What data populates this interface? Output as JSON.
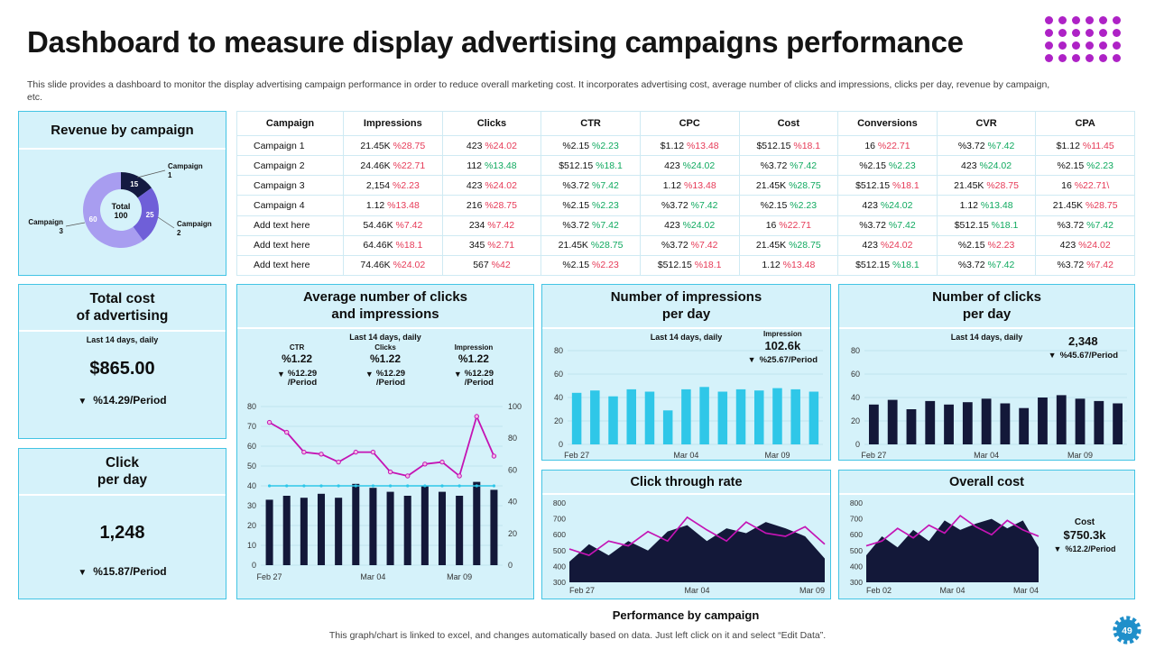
{
  "page": {
    "title": "Dashboard to measure display advertising campaigns performance",
    "subtitle": "This slide provides a dashboard to monitor the display advertising campaign performance in order to reduce overall marketing cost. It incorporates advertising cost, average number of clicks and impressions, clicks per day, revenue by campaign, etc.",
    "footer_title": "Performance by campaign",
    "footer_note": "This graph/chart is linked to excel,  and changes automatically based on data. Just left click on it and select “Edit Data”.",
    "page_number": "49"
  },
  "icons": {
    "down_triangle": "▼"
  },
  "colors": {
    "red": "#e63a57",
    "green": "#0fa95f",
    "navy": "#131839",
    "cyan": "#2fc7e8",
    "magenta": "#c414b4",
    "panel_bg": "#d5f2fa",
    "panel_border": "#43c4e4",
    "grid": "#b9dfea",
    "dots": "#ae22c6",
    "badge": "#1f8fca"
  },
  "revenue": {
    "title": "Revenue by campaign",
    "chart_data": {
      "type": "pie",
      "center_label": [
        "Total",
        "100"
      ],
      "slices": [
        {
          "label": "Campaign 1",
          "value": 15,
          "color": "#141a41"
        },
        {
          "label": "Campaign 2",
          "value": 25,
          "color": "#6f5fd8"
        },
        {
          "label": "Campaign 3",
          "value": 60,
          "color": "#a89df0"
        }
      ]
    }
  },
  "table": {
    "columns": [
      "Campaign",
      "Impressions",
      "Clicks",
      "CTR",
      "CPC",
      "Cost",
      "Conversions",
      "CVR",
      "CPA"
    ],
    "rows": [
      {
        "label": "Campaign  1",
        "cells": [
          {
            "v": "21.45K",
            "p": "%28.75",
            "c": "red"
          },
          {
            "v": "423",
            "p": "%24.02",
            "c": "red"
          },
          {
            "v": "%2.15",
            "p": "%2.23",
            "c": "green"
          },
          {
            "v": "$1.12",
            "p": "%13.48",
            "c": "red"
          },
          {
            "v": "$512.15",
            "p": "%18.1",
            "c": "red"
          },
          {
            "v": "16",
            "p": "%22.71",
            "c": "red"
          },
          {
            "v": "%3.72",
            "p": "%7.42",
            "c": "green"
          },
          {
            "v": "$1.12",
            "p": "%11.45",
            "c": "red"
          }
        ]
      },
      {
        "label": "Campaign  2",
        "cells": [
          {
            "v": "24.46K",
            "p": "%22.71",
            "c": "red"
          },
          {
            "v": "112",
            "p": "%13.48",
            "c": "green"
          },
          {
            "v": "$512.15",
            "p": "%18.1",
            "c": "green"
          },
          {
            "v": "423",
            "p": "%24.02",
            "c": "green"
          },
          {
            "v": "%3.72",
            "p": "%7.42",
            "c": "green"
          },
          {
            "v": "%2.15",
            "p": "%2.23",
            "c": "green"
          },
          {
            "v": "423",
            "p": "%24.02",
            "c": "green"
          },
          {
            "v": "%2.15",
            "p": "%2.23",
            "c": "green"
          }
        ]
      },
      {
        "label": "Campaign  3",
        "cells": [
          {
            "v": "2,154",
            "p": "%2.23",
            "c": "red"
          },
          {
            "v": "423",
            "p": "%24.02",
            "c": "red"
          },
          {
            "v": "%3.72",
            "p": "%7.42",
            "c": "green"
          },
          {
            "v": "1.12",
            "p": "%13.48",
            "c": "red"
          },
          {
            "v": "21.45K",
            "p": "%28.75",
            "c": "green"
          },
          {
            "v": "$512.15",
            "p": "%18.1",
            "c": "red"
          },
          {
            "v": "21.45K",
            "p": "%28.75",
            "c": "red"
          },
          {
            "v": "16",
            "p": "%22.71\\",
            "c": "red"
          }
        ]
      },
      {
        "label": "Campaign  4",
        "cells": [
          {
            "v": "1.12",
            "p": "%13.48",
            "c": "red"
          },
          {
            "v": "216",
            "p": "%28.75",
            "c": "red"
          },
          {
            "v": "%2.15",
            "p": "%2.23",
            "c": "green"
          },
          {
            "v": "%3.72",
            "p": "%7.42",
            "c": "green"
          },
          {
            "v": "%2.15",
            "p": "%2.23",
            "c": "green"
          },
          {
            "v": "423",
            "p": "%24.02",
            "c": "green"
          },
          {
            "v": "1.12",
            "p": "%13.48",
            "c": "green"
          },
          {
            "v": "21.45K",
            "p": "%28.75",
            "c": "red"
          }
        ]
      },
      {
        "label": "Add text here",
        "cells": [
          {
            "v": "54.46K",
            "p": "%7.42",
            "c": "red"
          },
          {
            "v": "234",
            "p": "%7.42",
            "c": "red"
          },
          {
            "v": "%3.72",
            "p": "%7.42",
            "c": "green"
          },
          {
            "v": "423",
            "p": "%24.02",
            "c": "green"
          },
          {
            "v": "16",
            "p": "%22.71",
            "c": "red"
          },
          {
            "v": "%3.72",
            "p": "%7.42",
            "c": "green"
          },
          {
            "v": "$512.15",
            "p": "%18.1",
            "c": "green"
          },
          {
            "v": "%3.72",
            "p": "%7.42",
            "c": "green"
          }
        ]
      },
      {
        "label": "Add text here",
        "cells": [
          {
            "v": "64.46K",
            "p": "%18.1",
            "c": "red"
          },
          {
            "v": "345",
            "p": "%2.71",
            "c": "red"
          },
          {
            "v": "21.45K",
            "p": "%28.75",
            "c": "green"
          },
          {
            "v": "%3.72",
            "p": "%7.42",
            "c": "red"
          },
          {
            "v": "21.45K",
            "p": "%28.75",
            "c": "green"
          },
          {
            "v": "423",
            "p": "%24.02",
            "c": "red"
          },
          {
            "v": "%2.15",
            "p": "%2.23",
            "c": "red"
          },
          {
            "v": "423",
            "p": "%24.02",
            "c": "red"
          }
        ]
      },
      {
        "label": "Add text here",
        "cells": [
          {
            "v": "74.46K",
            "p": "%24.02",
            "c": "red"
          },
          {
            "v": "567",
            "p": "%42",
            "c": "red"
          },
          {
            "v": "%2.15",
            "p": "%2.23",
            "c": "red"
          },
          {
            "v": "$512.15",
            "p": "%18.1",
            "c": "red"
          },
          {
            "v": "1.12",
            "p": "%13.48",
            "c": "red"
          },
          {
            "v": "$512.15",
            "p": "%18.1",
            "c": "green"
          },
          {
            "v": "%3.72",
            "p": "%7.42",
            "c": "green"
          },
          {
            "v": "%3.72",
            "p": "%7.42",
            "c": "red"
          }
        ]
      }
    ]
  },
  "total_cost": {
    "title1": "Total cost",
    "title2": "of advertising",
    "subtitle": "Last 14 days, daily",
    "value": "$865.00",
    "delta": "%14.29/Period"
  },
  "click_day": {
    "title1": "Click",
    "title2": "per day",
    "value": "1,248",
    "delta": "%15.87/Period"
  },
  "avg": {
    "title1": "Average number of clicks",
    "title2": "and impressions",
    "subtitle": "Last 14 days, daily",
    "stats": [
      {
        "label": "CTR",
        "value": "%1.22",
        "delta": "%12.29",
        "period": "/Period"
      },
      {
        "label": "Clicks",
        "value": "%1.22",
        "delta": "%12.29",
        "period": "/Period"
      },
      {
        "label": "Impression",
        "value": "%1.22",
        "delta": "%12.29",
        "period": "/Period"
      }
    ],
    "chart_data": {
      "type": "combo",
      "y_left": {
        "min": 0,
        "max": 80,
        "step": 10
      },
      "y_right": {
        "min": 0,
        "max": 100,
        "step": 20
      },
      "x_labels": [
        "Feb 27",
        "Mar 04",
        "Mar 09"
      ],
      "x_label_idx": [
        0,
        6,
        11
      ],
      "bars": [
        33,
        35,
        34,
        36,
        34,
        41,
        39,
        37,
        35,
        40,
        37,
        35,
        42,
        38
      ],
      "line_magenta": [
        72,
        67,
        57,
        56,
        52,
        57,
        57,
        47,
        45,
        51,
        52,
        45,
        75,
        55
      ],
      "line_cyan": [
        40,
        40,
        40,
        40,
        40,
        40,
        40,
        40,
        40,
        40,
        40,
        40,
        40,
        40
      ]
    }
  },
  "impressions": {
    "title1": "Number of impressions",
    "title2": "per day",
    "subtitle": "Last 14 days, daily",
    "stat_label": "Impression",
    "stat_value": "102.6k",
    "delta": "%25.67/Period",
    "chart_data": {
      "type": "bar",
      "y": {
        "min": 0,
        "max": 80,
        "step": 20
      },
      "x_labels": [
        "Feb 27",
        "Mar 04",
        "Mar 09"
      ],
      "x_label_idx": [
        0,
        6,
        11
      ],
      "values": [
        44,
        46,
        41,
        47,
        45,
        29,
        47,
        49,
        45,
        47,
        46,
        48,
        47,
        45
      ]
    }
  },
  "clicks": {
    "title1": "Number of clicks",
    "title2": "per day",
    "subtitle": "Last 14 days, daily",
    "stat_value": "2,348",
    "delta": "%45.67/Period",
    "chart_data": {
      "type": "bar",
      "y": {
        "min": 0,
        "max": 80,
        "step": 20
      },
      "x_labels": [
        "Feb 27",
        "Mar 04",
        "Mar 09"
      ],
      "x_label_idx": [
        0,
        6,
        11
      ],
      "values": [
        34,
        38,
        30,
        37,
        34,
        36,
        39,
        35,
        31,
        40,
        42,
        39,
        37,
        35
      ]
    }
  },
  "ctr": {
    "title": "Click through rate",
    "chart_data": {
      "type": "area",
      "y": {
        "min": 300,
        "max": 800,
        "step": 100
      },
      "x_labels": [
        "Feb 27",
        "Mar 04",
        "Mar 09"
      ],
      "area": [
        430,
        540,
        470,
        560,
        500,
        620,
        660,
        560,
        640,
        610,
        680,
        640,
        590,
        450
      ],
      "line": [
        510,
        470,
        560,
        530,
        620,
        560,
        710,
        630,
        560,
        680,
        610,
        590,
        650,
        540
      ]
    }
  },
  "cost": {
    "title": "Overall cost",
    "stat_label": "Cost",
    "stat_value": "$750.3k",
    "delta": "%12.2/Period",
    "chart_data": {
      "type": "area",
      "y": {
        "min": 300,
        "max": 800,
        "step": 100
      },
      "x_labels": [
        "Feb 02",
        "Mar 04",
        "Mar 04"
      ],
      "area": [
        470,
        590,
        520,
        630,
        560,
        690,
        630,
        670,
        700,
        640,
        690,
        520
      ],
      "line": [
        530,
        560,
        640,
        580,
        660,
        610,
        720,
        650,
        600,
        690,
        630,
        590
      ]
    }
  }
}
